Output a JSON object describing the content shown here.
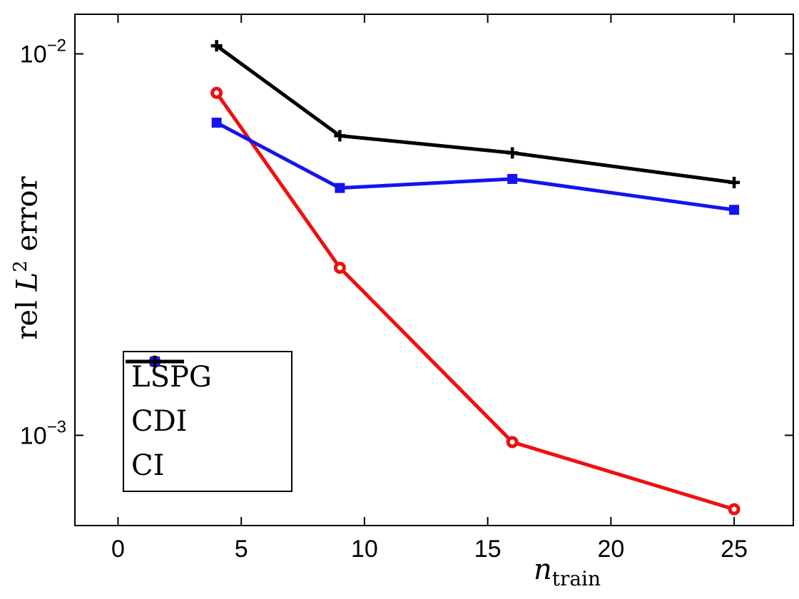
{
  "figure": {
    "background": "#ffffff",
    "axes_color": "#000000"
  },
  "chart_data": {
    "type": "line",
    "title": "",
    "xlabel": "n_train",
    "ylabel": "rel L^2 error",
    "labels": {
      "ylabel": {
        "prefix": "rel ",
        "var": "L",
        "sup": "2",
        "suffix": " error"
      },
      "xlabel": {
        "var": "n",
        "sub": "train"
      }
    },
    "x_scale": "linear",
    "y_scale": "log",
    "xlim": [
      -1.75,
      27.4
    ],
    "ylim": [
      0.00058,
      0.0127
    ],
    "xticks": [
      0,
      5,
      10,
      15,
      20,
      25
    ],
    "yticks": [
      {
        "value": 0.01,
        "base": "10",
        "exp": "-2"
      },
      {
        "value": 0.001,
        "base": "10",
        "exp": "-3"
      }
    ],
    "x": [
      4,
      9,
      16,
      25
    ],
    "series": [
      {
        "name": "LSPG",
        "color": "#ee1010",
        "marker": "circle",
        "values": [
          0.0079,
          0.00275,
          0.00096,
          0.00064
        ]
      },
      {
        "name": "CDI",
        "color": "#1414ee",
        "marker": "square",
        "values": [
          0.0066,
          0.00445,
          0.0047,
          0.0039
        ]
      },
      {
        "name": "CI",
        "color": "#000000",
        "marker": "plus",
        "values": [
          0.0105,
          0.0061,
          0.0055,
          0.0046
        ]
      }
    ],
    "legend": {
      "position": "lower-left"
    },
    "grid": false,
    "line_width": 5
  }
}
